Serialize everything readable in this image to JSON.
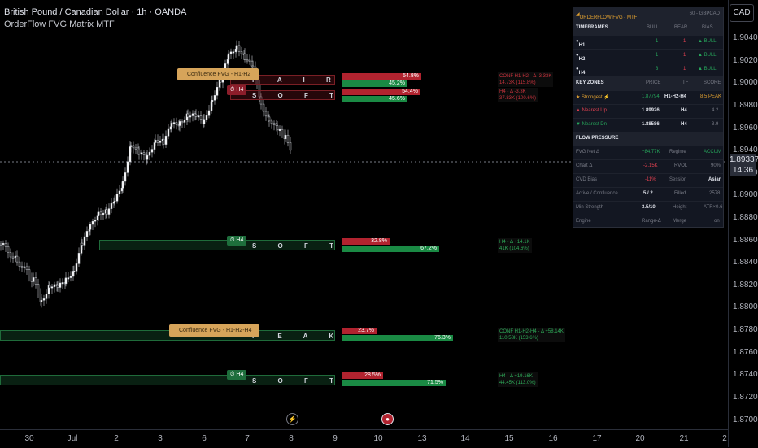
{
  "header": {
    "title": "British Pound / Canadian Dollar · 1h · OANDA",
    "indicator": "OrderFlow FVG Matrix MTF"
  },
  "currency_button": "CAD",
  "price_axis": {
    "labels": [
      "1.90400",
      "1.90200",
      "1.90000",
      "1.89800",
      "1.89600",
      "1.89400",
      "1.89200",
      "1.89000",
      "1.88800",
      "1.88600",
      "1.88400",
      "1.88200",
      "1.88000",
      "1.87800",
      "1.87600",
      "1.87400",
      "1.87200",
      "1.87000"
    ],
    "current_price": "1.89337",
    "countdown": "14:36"
  },
  "time_axis": {
    "labels": [
      "30",
      "Jul",
      "2",
      "3",
      "6",
      "7",
      "8",
      "9",
      "10",
      "13",
      "14",
      "15",
      "16",
      "17",
      "20",
      "21",
      "2"
    ]
  },
  "zones": [
    {
      "word": "F A I R",
      "kind": "red"
    },
    {
      "word": "S O F T",
      "kind": "red",
      "tf": "H4"
    },
    {
      "word": "S O F T",
      "kind": "green",
      "tf": "H4"
    },
    {
      "word": "P E A K",
      "kind": "green"
    },
    {
      "word": "S O F T",
      "kind": "green",
      "tf": "H4"
    }
  ],
  "confluence_labels": [
    "Confluence FVG - H1-H2",
    "Confluence FVG - H1-H2-H4"
  ],
  "bars": [
    {
      "red": "54.8%",
      "green": "45.2%"
    },
    {
      "red": "54.4%",
      "green": "45.6%"
    },
    {
      "red": "32.8%",
      "green": "67.2%"
    },
    {
      "red": "23.7%",
      "green": "76.3%"
    },
    {
      "red": "28.5%",
      "green": "71.5%"
    }
  ],
  "infos": [
    {
      "l1": "CONF H1-H2 - Δ -3.33K",
      "l2": "14.73K (115.8%)"
    },
    {
      "l1": "H4 - Δ -3.3K",
      "l2": "37.83K (100.6%)"
    },
    {
      "l1": "H4 - Δ +14.1K",
      "l2": "41K (104.6%)"
    },
    {
      "l1": "CONF H1-H2-H4 - Δ +58.14K",
      "l2": "110.58K (153.6%)"
    },
    {
      "l1": "H4 - Δ +19.16K",
      "l2": "44.45K (113.0%)"
    }
  ],
  "panel": {
    "title": "ORDERFLOW FVG - MTF",
    "title_right": "60 - GBPCAD",
    "timeframes": {
      "h": "TIMEFRAMES",
      "c1": "BULL",
      "c2": "BEAR",
      "c3": "BIAS"
    },
    "tf_rows": [
      {
        "name": "H1",
        "bull": "1",
        "bear": "1",
        "bias": "▲ BULL"
      },
      {
        "name": "H2",
        "bull": "1",
        "bear": "1",
        "bias": "▲ BULL"
      },
      {
        "name": "H4",
        "bull": "3",
        "bear": "1",
        "bias": "▲ BULL"
      }
    ],
    "zones_hdr": {
      "h": "KEY ZONES",
      "c1": "PRICE",
      "c2": "TF",
      "c3": "SCORE"
    },
    "zone_rows": [
      {
        "name": "★ Strongest ⚡",
        "price": "1.87794",
        "tf": "H1-H2-H4",
        "score": "8.5 PEAK"
      },
      {
        "name": "▲ Nearest Up",
        "price": "1.89926",
        "tf": "H4",
        "score": "4.2"
      },
      {
        "name": "▼ Nearest Dn",
        "price": "1.88586",
        "tf": "H4",
        "score": "3.9"
      }
    ],
    "flow_hdr": "FLOW PRESSURE",
    "flow_rows": [
      {
        "a": "FVG Net Δ",
        "b": "+84.77K",
        "c": "Regime",
        "d": "ACCUM"
      },
      {
        "a": "Chart Δ",
        "b": "-2.15K",
        "c": "RVOL",
        "d": "90%"
      },
      {
        "a": "CVD Bias",
        "b": "-11%",
        "c": "Session",
        "d": "Asian"
      },
      {
        "a": "Active / Confluence",
        "b": "5 / 2",
        "c": "Filled",
        "d": "2578"
      },
      {
        "a": "Min Strength",
        "b": "3.5/10",
        "c": "Height",
        "d": "ATR×0.6"
      },
      {
        "a": "Engine",
        "b": "Range-Δ",
        "c": "Merge",
        "d": "on"
      }
    ]
  },
  "colors": {
    "bull": "#1a8a44",
    "bear": "#b1232f",
    "accent": "#d6a45a",
    "background": "#000000"
  }
}
